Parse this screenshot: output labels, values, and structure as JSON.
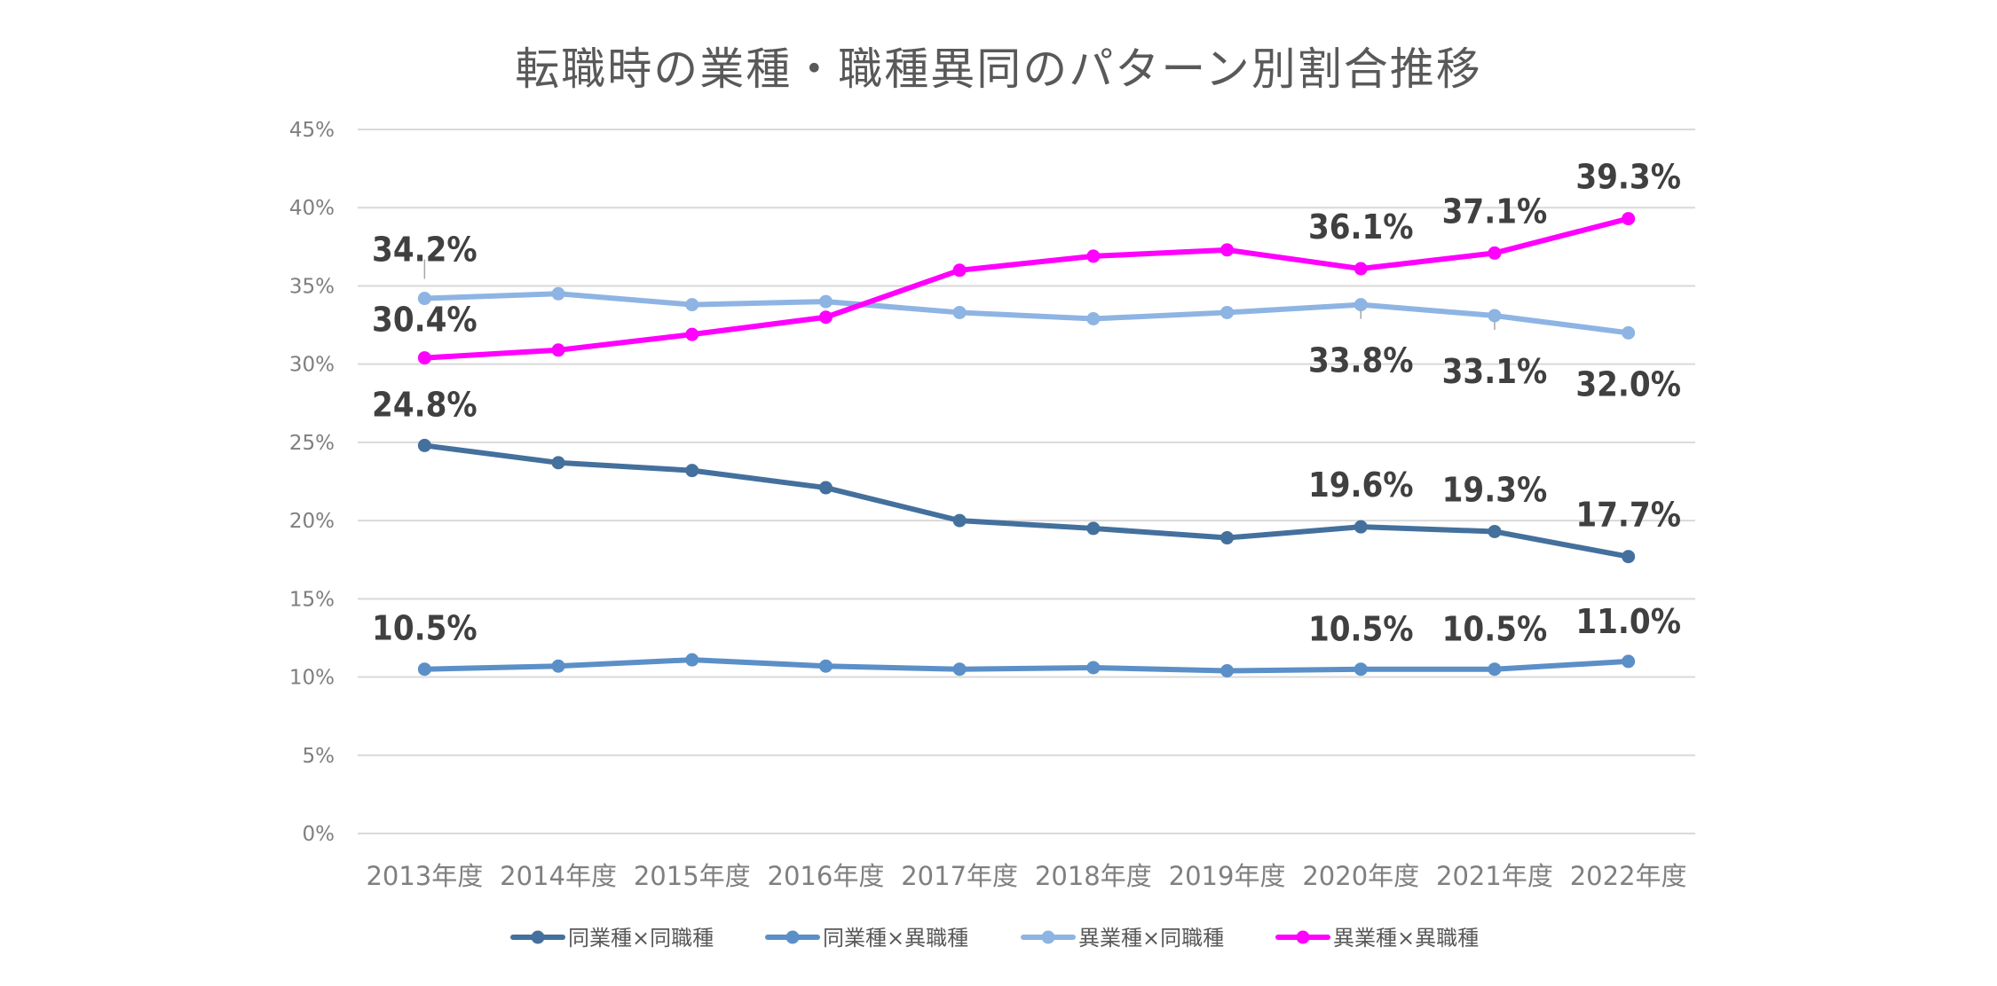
{
  "chart_data": {
    "type": "line",
    "title": "転職時の業種・職種異同のパターン別割合推移",
    "categories": [
      "2013年度",
      "2014年度",
      "2015年度",
      "2016年度",
      "2017年度",
      "2018年度",
      "2019年度",
      "2020年度",
      "2021年度",
      "2022年度"
    ],
    "ylim": [
      0,
      45
    ],
    "yticks": [
      "0%",
      "5%",
      "10%",
      "15%",
      "20%",
      "25%",
      "30%",
      "35%",
      "40%",
      "45%"
    ],
    "series": [
      {
        "name": "同業種×同職種",
        "color": "#44709d",
        "values": [
          24.8,
          23.7,
          23.2,
          22.1,
          20.0,
          19.5,
          18.9,
          19.6,
          19.3,
          17.7
        ],
        "labels": [
          "24.8%",
          null,
          null,
          null,
          null,
          null,
          null,
          "19.6%",
          "19.3%",
          "17.7%"
        ]
      },
      {
        "name": "同業種×異職種",
        "color": "#5b8fc7",
        "values": [
          10.5,
          10.7,
          11.1,
          10.7,
          10.5,
          10.6,
          10.4,
          10.5,
          10.5,
          11.0
        ],
        "labels": [
          "10.5%",
          null,
          null,
          null,
          null,
          null,
          null,
          "10.5%",
          "10.5%",
          "11.0%"
        ]
      },
      {
        "name": "異業種×同職種",
        "color": "#8eb4e3",
        "values": [
          34.2,
          34.5,
          33.8,
          34.0,
          33.3,
          32.9,
          33.3,
          33.8,
          33.1,
          32.0
        ],
        "labels": [
          "34.2%",
          null,
          null,
          null,
          null,
          null,
          null,
          "33.8%",
          "33.1%",
          "32.0%"
        ]
      },
      {
        "name": "異業種×異職種",
        "color": "#ff00ff",
        "values": [
          30.4,
          30.9,
          31.9,
          33.0,
          36.0,
          36.9,
          37.3,
          36.1,
          37.1,
          39.3
        ],
        "labels": [
          "30.4%",
          null,
          null,
          null,
          null,
          null,
          null,
          "36.1%",
          "37.1%",
          "39.3%"
        ]
      }
    ]
  }
}
